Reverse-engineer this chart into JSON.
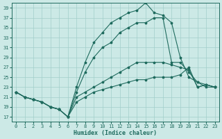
{
  "xlabel": "Humidex (Indice chaleur)",
  "xlim": [
    -0.5,
    23.5
  ],
  "ylim": [
    16,
    40
  ],
  "yticks": [
    17,
    19,
    21,
    23,
    25,
    27,
    29,
    31,
    33,
    35,
    37,
    39
  ],
  "xticks": [
    0,
    1,
    2,
    3,
    4,
    5,
    6,
    7,
    8,
    9,
    10,
    11,
    12,
    13,
    14,
    15,
    16,
    17,
    18,
    19,
    20,
    21,
    22,
    23
  ],
  "bg_color": "#cce9e6",
  "grid_color": "#a2ceca",
  "line_color": "#1f6b5e",
  "lines": [
    [
      22,
      21,
      20.5,
      20,
      19,
      18.5,
      17,
      23,
      28,
      32,
      34,
      36,
      37,
      38,
      38.5,
      40,
      38,
      37.5,
      36,
      29,
      25,
      24,
      23,
      23
    ],
    [
      22,
      21,
      20.5,
      20,
      19,
      18.5,
      17,
      22,
      26,
      29,
      31,
      32,
      34,
      35,
      36,
      36,
      37,
      37,
      28,
      28,
      26,
      24,
      23.5,
      23
    ],
    [
      22,
      21,
      20.5,
      20,
      19,
      18.5,
      17,
      21,
      22,
      23,
      24,
      25,
      26,
      27,
      28,
      28,
      28,
      28,
      27.5,
      27,
      26.5,
      23,
      23.5,
      23
    ],
    [
      22,
      21,
      20.5,
      20,
      19,
      18.5,
      17,
      20,
      21,
      22,
      22.5,
      23,
      23.5,
      24,
      24.5,
      24.5,
      25,
      25,
      25,
      25.5,
      27,
      23,
      23.5,
      23
    ]
  ]
}
